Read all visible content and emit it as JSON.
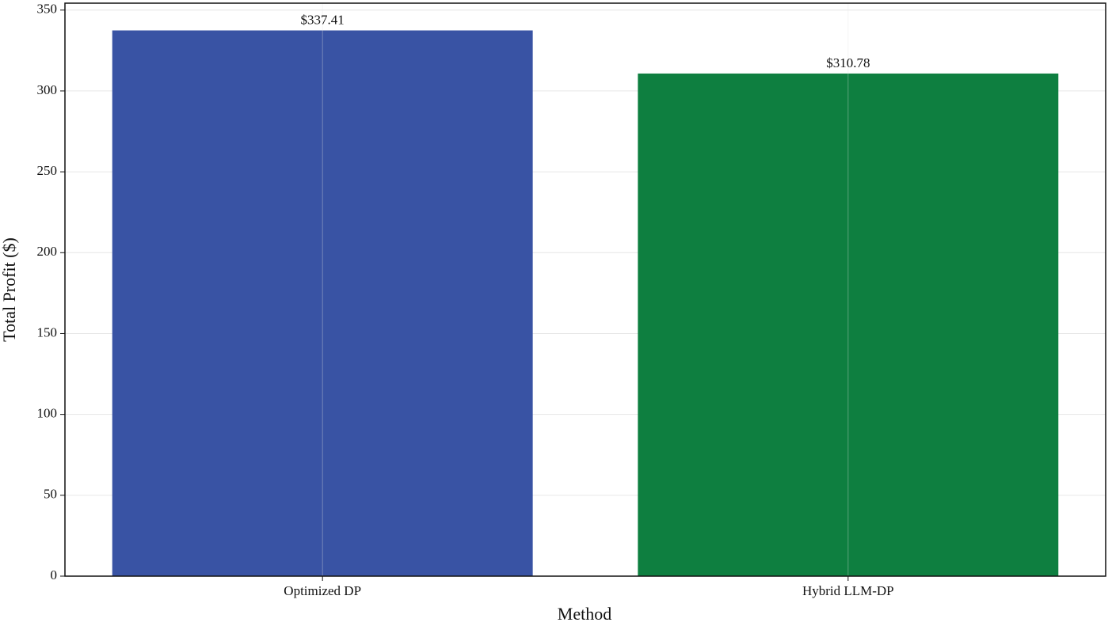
{
  "chart_data": {
    "type": "bar",
    "xlabel": "Method",
    "ylabel": "Total Profit ($)",
    "categories": [
      "Optimized DP",
      "Hybrid LLM-DP"
    ],
    "values": [
      337.41,
      310.78
    ],
    "value_labels": [
      "$337.41",
      "$310.78"
    ],
    "colors": [
      "#3953a4",
      "#0e7f40"
    ],
    "ylim": [
      0,
      354.28
    ],
    "yticks": [
      0,
      50,
      100,
      150,
      200,
      250,
      300,
      350
    ],
    "grid": true
  }
}
